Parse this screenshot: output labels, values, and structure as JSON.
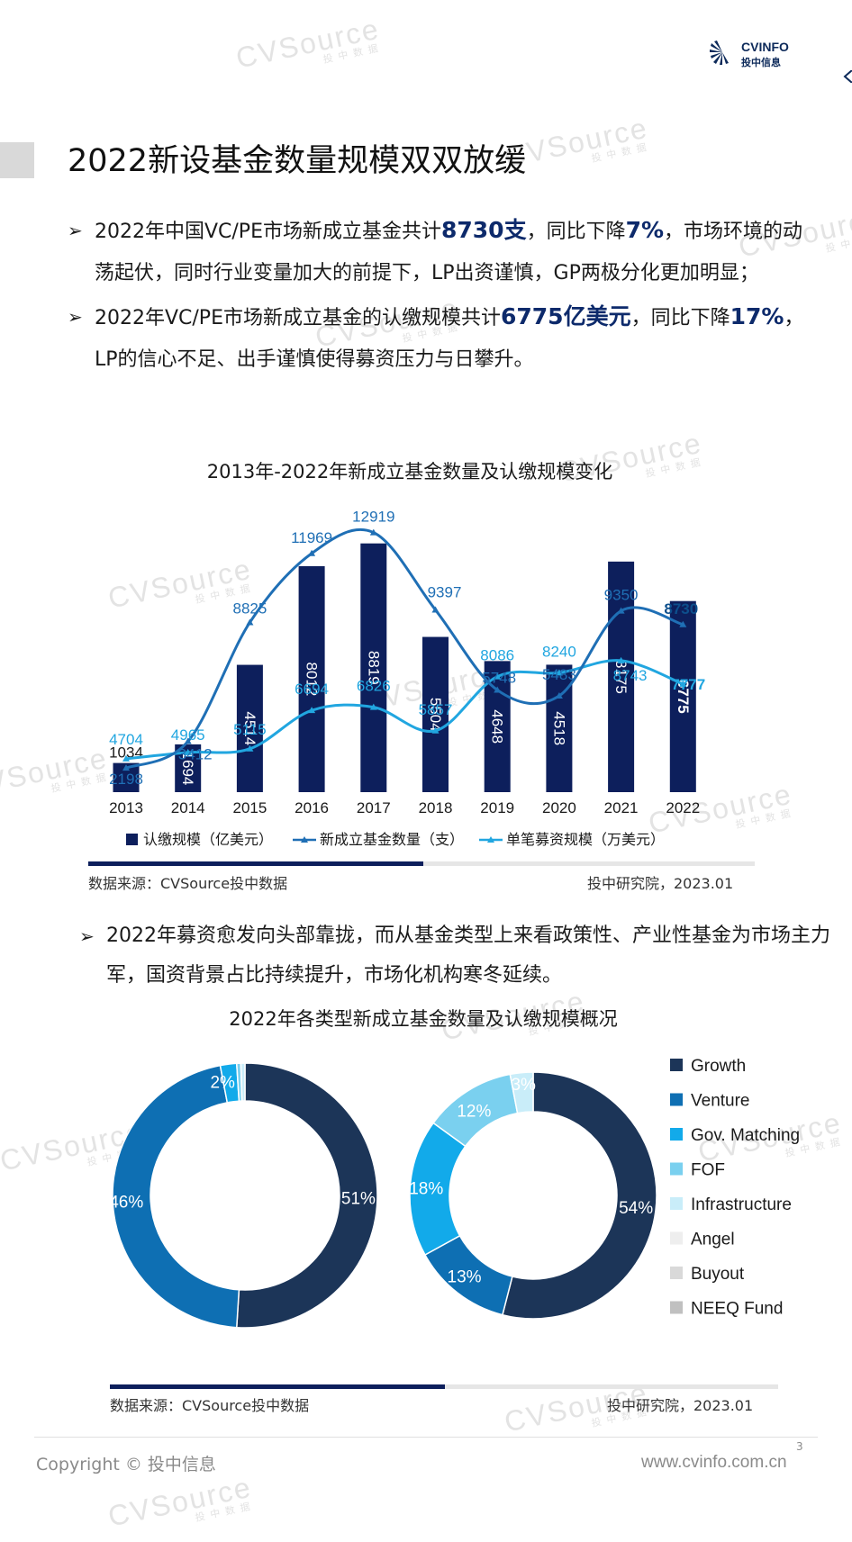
{
  "header": {
    "logo_name": "CVINFO",
    "logo_sub": "投中信息",
    "page_title": "2022新设基金数量规模双双放缓"
  },
  "bullets": [
    {
      "arrow": "➢",
      "p1": "2022年中国VC/PE市场新成立基金共计",
      "h1": "8730支",
      "p2": "，同比下降",
      "h2": "7%",
      "p3": "，市场环境的动荡起伏，同时行业变量加大的前提下，LP出资谨慎，GP两极分化更加明显；"
    },
    {
      "arrow": "➢",
      "p1": "2022年VC/PE市场新成立基金的认缴规模共计",
      "h1": "6775亿美元",
      "p2": "，同比下降",
      "h2": "17%",
      "p3": "，LP的信心不足、出手谨慎使得募资压力与日攀升。"
    }
  ],
  "bullet3": {
    "arrow": "➢",
    "text": "2022年募资愈发向头部靠拢，而从基金类型上来看政策性、产业性基金为市场主力军，国资背景占比持续提升，市场化机构寒冬延续。"
  },
  "chart_data": [
    {
      "type": "bar",
      "title": "2013年-2022年新成立基金数量及认缴规模变化",
      "categories": [
        "2013",
        "2014",
        "2015",
        "2016",
        "2017",
        "2018",
        "2019",
        "2020",
        "2021",
        "2022"
      ],
      "series": [
        {
          "name": "认缴规模（亿美元）",
          "kind": "bar",
          "color": "#0d1f5c",
          "values": [
            1034,
            1694,
            4514,
            8012,
            8819,
            5504,
            4648,
            4518,
            8175,
            6775
          ]
        },
        {
          "name": "新成立基金数量（支）",
          "kind": "line",
          "color": "#1f6fb5",
          "values": [
            2198,
            3412,
            8825,
            11969,
            12919,
            9397,
            5748,
            5483,
            9350,
            8730
          ]
        },
        {
          "name": "单笔募资规模（万美元）",
          "kind": "line",
          "color": "#21a6e0",
          "values": [
            4704,
            4965,
            5115,
            6694,
            6826,
            5857,
            8086,
            8240,
            8743,
            7777
          ]
        }
      ],
      "legend": "bottom",
      "grid": false,
      "source": "数据来源：CVSource投中数据",
      "credit": "投中研究院，2023.01"
    },
    {
      "type": "pie",
      "title": "2022年各类型新成立基金数量及认缴规模概况",
      "legend": "right",
      "legend_items": [
        {
          "name": "Growth",
          "color": "#1c3558"
        },
        {
          "name": "Venture",
          "color": "#0e6fb3"
        },
        {
          "name": "Gov. Matching",
          "color": "#12aaea"
        },
        {
          "name": "FOF",
          "color": "#7ad0ef"
        },
        {
          "name": "Infrastructure",
          "color": "#c9edf9"
        },
        {
          "name": "Angel",
          "color": "#eeeeee"
        },
        {
          "name": "Buyout",
          "color": "#d9d9d9"
        },
        {
          "name": "NEEQ Fund",
          "color": "#c0c0c0"
        }
      ],
      "donuts": [
        {
          "slices": [
            {
              "name": "Growth",
              "value": 51,
              "label": "51%"
            },
            {
              "name": "Venture",
              "value": 46,
              "label": "46%"
            },
            {
              "name": "Gov. Matching",
              "value": 2,
              "label": "2%"
            },
            {
              "name": "FOF",
              "value": 0.5,
              "label": ""
            },
            {
              "name": "Infrastructure",
              "value": 0.5,
              "label": "1%"
            }
          ]
        },
        {
          "slices": [
            {
              "name": "Growth",
              "value": 54,
              "label": "54%"
            },
            {
              "name": "Venture",
              "value": 13,
              "label": "13%"
            },
            {
              "name": "Gov. Matching",
              "value": 18,
              "label": "18%"
            },
            {
              "name": "FOF",
              "value": 12,
              "label": "12%"
            },
            {
              "name": "Infrastructure",
              "value": 3,
              "label": "3%"
            }
          ]
        }
      ],
      "source": "数据来源：CVSource投中数据",
      "credit": "投中研究院，2023.01"
    }
  ],
  "footer": {
    "copyright": "Copyright © 投中信息",
    "url": "www.cvinfo.com.cn",
    "page": "3"
  },
  "watermark": {
    "text": "CVSource",
    "sub": "投中数据",
    "color": "#e3e3e3"
  }
}
